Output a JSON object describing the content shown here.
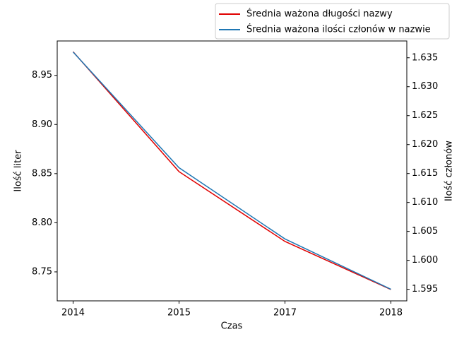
{
  "chart_data": {
    "type": "line",
    "xlabel": "Czas",
    "ylabel": "Ilość liter",
    "y2label": "Ilość członów",
    "categories": [
      "2014",
      "2015",
      "2017",
      "2018"
    ],
    "series": [
      {
        "name": "Średnia ważona długości nazwy",
        "color": "#e00000",
        "values": [
          8.974,
          8.852,
          8.781,
          8.732
        ]
      },
      {
        "name": "Średnia ważona ilości członów w nazwie",
        "color": "#1f77b4",
        "axis": "y2",
        "values": [
          1.636,
          1.616,
          1.6037,
          1.595
        ]
      }
    ],
    "ylim": [
      8.7205,
      8.985
    ],
    "yticks": [
      8.75,
      {
        "value": 8.8,
        "label": "8.80"
      },
      8.85,
      {
        "value": 8.9,
        "label": "8.90"
      },
      8.95
    ],
    "y2lim": [
      1.593,
      1.6379
    ],
    "y2ticks": [
      1.595,
      {
        "value": 1.6,
        "label": "1.600"
      },
      1.605,
      {
        "value": 1.61,
        "label": "1.610"
      },
      1.615,
      {
        "value": 1.62,
        "label": "1.620"
      },
      1.625,
      {
        "value": 1.63,
        "label": "1.630"
      },
      1.635
    ],
    "legend": "upper right outside"
  }
}
